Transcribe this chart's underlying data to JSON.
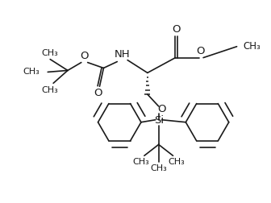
{
  "background_color": "#ffffff",
  "line_color": "#1a1a1a",
  "line_width": 1.2,
  "font_size": 8.5,
  "figsize": [
    3.36,
    2.52
  ],
  "dpi": 100,
  "xlim": [
    0,
    336
  ],
  "ylim": [
    0,
    252
  ]
}
